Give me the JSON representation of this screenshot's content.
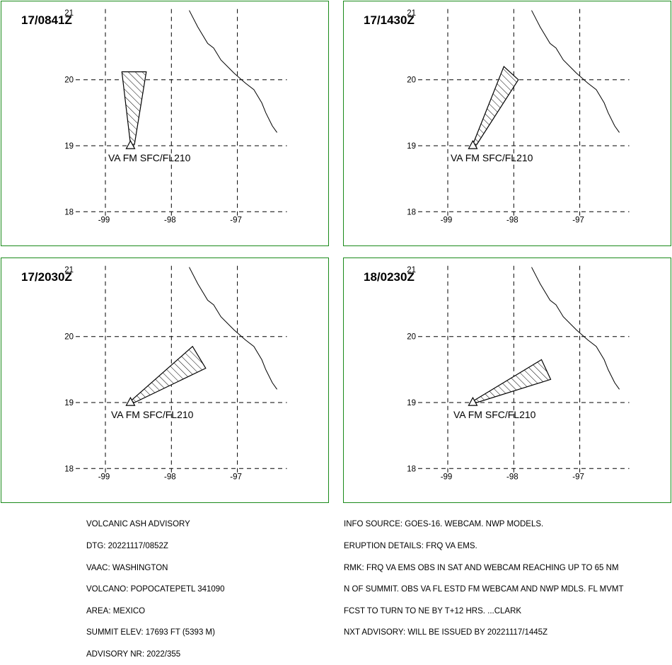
{
  "colors": {
    "frame": "#1a8a1a",
    "lines": "#000000",
    "background": "#ffffff"
  },
  "map": {
    "lon_ticks": [
      "-99",
      "-98",
      "-97"
    ],
    "lat_ticks": [
      "18",
      "19",
      "20",
      "21"
    ],
    "lon_range": [
      -99.5,
      -96.4
    ],
    "lat_range": [
      17.9,
      21.05
    ],
    "volcano": {
      "lon": -98.62,
      "lat": 19.02
    },
    "coastline": [
      [
        -97.73,
        21.05
      ],
      [
        -97.6,
        20.8
      ],
      [
        -97.45,
        20.55
      ],
      [
        -97.36,
        20.48
      ],
      [
        -97.25,
        20.3
      ],
      [
        -97.05,
        20.1
      ],
      [
        -96.88,
        19.95
      ],
      [
        -96.75,
        19.85
      ],
      [
        -96.63,
        19.65
      ],
      [
        -96.57,
        19.5
      ],
      [
        -96.47,
        19.3
      ],
      [
        -96.4,
        19.2
      ]
    ]
  },
  "panels": [
    {
      "time": "17/0841Z",
      "label": "VA FM SFC/FL210",
      "polygon": [
        [
          -98.62,
          19.02
        ],
        [
          -98.75,
          20.12
        ],
        [
          -98.38,
          20.12
        ],
        [
          -98.56,
          19.02
        ]
      ]
    },
    {
      "time": "17/1430Z",
      "label": "VA FM SFC/FL210",
      "polygon": [
        [
          -98.62,
          19.02
        ],
        [
          -98.15,
          20.2
        ],
        [
          -97.93,
          20.0
        ],
        [
          -98.56,
          19.02
        ]
      ]
    },
    {
      "time": "17/2030Z",
      "label": "VA FM SFC/FL210",
      "polygon": [
        [
          -98.62,
          19.02
        ],
        [
          -97.68,
          19.85
        ],
        [
          -97.48,
          19.52
        ],
        [
          -98.56,
          19.0
        ]
      ]
    },
    {
      "time": "18/0230Z",
      "label": "VA FM SFC/FL210",
      "polygon": [
        [
          -98.62,
          19.02
        ],
        [
          -97.58,
          19.65
        ],
        [
          -97.44,
          19.35
        ],
        [
          -98.56,
          19.0
        ]
      ]
    }
  ],
  "advisory_left": [
    "VOLCANIC ASH ADVISORY",
    "DTG: 20221117/0852Z",
    "VAAC: WASHINGTON",
    "VOLCANO: POPOCATEPETL 341090",
    "AREA: MEXICO",
    "SUMMIT ELEV: 17693 FT (5393 M)",
    "ADVISORY NR: 2022/355"
  ],
  "advisory_right": [
    "INFO SOURCE: GOES-16. WEBCAM. NWP MODELS.",
    "ERUPTION DETAILS: FRQ VA EMS.",
    "RMK: FRQ VA EMS OBS IN SAT AND WEBCAM REACHING UP TO 65 NM",
    "N OF SUMMIT. OBS VA FL ESTD FM WEBCAM AND NWP MDLS. FL MVMT",
    "FCST TO TURN TO NE BY T+12 HRS. ...CLARK",
    "NXT ADVISORY: WILL BE ISSUED BY 20221117/1445Z"
  ]
}
